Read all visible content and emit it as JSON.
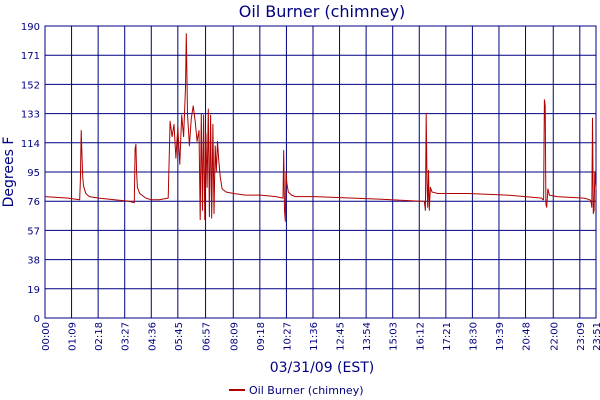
{
  "chart_data": {
    "type": "line",
    "title": "Oil Burner (chimney)",
    "xlabel": "03/31/09 (EST)",
    "ylabel": "Degrees F",
    "ylim": [
      0,
      190
    ],
    "xlim": [
      0,
      1431
    ],
    "y_ticks": [
      "0",
      "19",
      "38",
      "57",
      "76",
      "95",
      "114",
      "133",
      "152",
      "171",
      "190"
    ],
    "x_ticks": [
      "00:00",
      "01:09",
      "02:18",
      "03:27",
      "04:36",
      "05:45",
      "06:57",
      "08:09",
      "09:18",
      "10:27",
      "11:36",
      "12:45",
      "13:54",
      "15:03",
      "16:12",
      "17:21",
      "18:30",
      "19:39",
      "20:48",
      "22:00",
      "23:09",
      "23:51"
    ],
    "grid": true,
    "legend_position": "bottom-center",
    "series": [
      {
        "name": "Oil Burner (chimney)",
        "color": "#b00000",
        "x": [
          0,
          60,
          90,
          92,
          94,
          96,
          98,
          100,
          106,
          115,
          140,
          180,
          217,
          232,
          234,
          236,
          238,
          240,
          246,
          262,
          275,
          296,
          320,
          325,
          330,
          335,
          340,
          345,
          350,
          355,
          360,
          365,
          367,
          370,
          375,
          380,
          385,
          390,
          395,
          400,
          403,
          406,
          409,
          412,
          415,
          418,
          421,
          424,
          427,
          430,
          433,
          436,
          439,
          442,
          445,
          448,
          451,
          455,
          460,
          470,
          490,
          520,
          560,
          600,
          618,
          620,
          622,
          624,
          626,
          628,
          632,
          640,
          650,
          700,
          800,
          900,
          975,
          985,
          988,
          990,
          992,
          994,
          996,
          998,
          1001,
          1005,
          1020,
          1100,
          1200,
          1290,
          1293,
          1295,
          1297,
          1299,
          1301,
          1303,
          1306,
          1310,
          1330,
          1400,
          1415,
          1418,
          1420,
          1422,
          1424,
          1426,
          1428,
          1431
        ],
        "y": [
          79,
          78,
          77,
          90,
          122,
          105,
          92,
          86,
          81,
          79,
          78,
          77,
          76,
          75,
          110,
          113,
          95,
          85,
          81,
          78,
          77,
          77,
          78,
          128,
          118,
          126,
          104,
          124,
          100,
          132,
          118,
          150,
          185,
          133,
          112,
          130,
          138,
          128,
          115,
          122,
          64,
          133,
          70,
          132,
          64,
          120,
          85,
          136,
          66,
          132,
          65,
          126,
          68,
          112,
          95,
          115,
          103,
          92,
          84,
          82,
          81,
          80,
          80,
          79,
          78,
          109,
          70,
          63,
          95,
          88,
          82,
          80,
          79,
          79,
          78,
          77,
          76,
          76,
          70,
          133,
          88,
          72,
          96,
          70,
          85,
          82,
          81,
          81,
          80,
          78,
          77,
          77,
          142,
          138,
          74,
          72,
          84,
          80,
          79,
          78,
          77,
          76,
          72,
          130,
          68,
          70,
          95,
          84
        ]
      }
    ]
  }
}
